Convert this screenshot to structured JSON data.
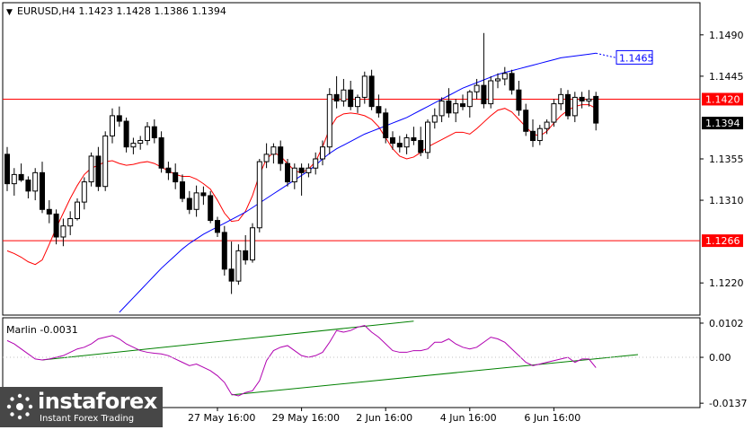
{
  "chart_data": {
    "type": "candlestick",
    "symbol_header": "EURUSD,H4  1.1423 1.1428 1.1386 1.1394",
    "ohlc_last": {
      "open": 1.1423,
      "high": 1.1428,
      "low": 1.1386,
      "close": 1.1394
    },
    "price_axis": {
      "ylim": [
        1.1185,
        1.1525
      ],
      "ticks": [
        "1.1490",
        "1.1445",
        "1.1355",
        "1.1310",
        "1.1220"
      ]
    },
    "horizontal_levels": [
      {
        "price": 1.142,
        "label": "1.1420",
        "color": "#ff0000"
      },
      {
        "price": 1.1266,
        "label": "1.1266",
        "color": "#ff0000"
      }
    ],
    "current_price": {
      "price": 1.1394,
      "label": "1.1394"
    },
    "target_label": {
      "price": 1.1465,
      "label": "1.1465",
      "color": "#0000ff"
    },
    "time_axis": {
      "ticks": [
        "27 May 16:00",
        "29 May 16:00",
        "2 Jun 16:00",
        "4 Jun 16:00",
        "6 Jun 16:00"
      ],
      "tick_bars": [
        30,
        42,
        54,
        66,
        78
      ]
    },
    "candles": [
      [
        1.136,
        1.1368,
        1.132,
        1.1328
      ],
      [
        1.1328,
        1.1345,
        1.1315,
        1.1338
      ],
      [
        1.1338,
        1.135,
        1.133,
        1.1332
      ],
      [
        1.1332,
        1.1336,
        1.1312,
        1.132
      ],
      [
        1.132,
        1.1345,
        1.131,
        1.134
      ],
      [
        1.134,
        1.1352,
        1.1296,
        1.13
      ],
      [
        1.13,
        1.131,
        1.1285,
        1.1295
      ],
      [
        1.1295,
        1.13,
        1.1262,
        1.127
      ],
      [
        1.127,
        1.129,
        1.126,
        1.1282
      ],
      [
        1.1282,
        1.1298,
        1.1272,
        1.129
      ],
      [
        1.129,
        1.1312,
        1.1288,
        1.1308
      ],
      [
        1.1308,
        1.1335,
        1.13,
        1.133
      ],
      [
        1.133,
        1.1362,
        1.1325,
        1.1358
      ],
      [
        1.1358,
        1.1368,
        1.132,
        1.1325
      ],
      [
        1.1325,
        1.1385,
        1.132,
        1.138
      ],
      [
        1.138,
        1.141,
        1.1372,
        1.1402
      ],
      [
        1.1402,
        1.1412,
        1.139,
        1.1396
      ],
      [
        1.1396,
        1.14,
        1.1362,
        1.1368
      ],
      [
        1.1368,
        1.1378,
        1.136,
        1.1372
      ],
      [
        1.1372,
        1.138,
        1.1365,
        1.1375
      ],
      [
        1.1375,
        1.1395,
        1.137,
        1.139
      ],
      [
        1.139,
        1.1398,
        1.1372,
        1.1378
      ],
      [
        1.1378,
        1.1385,
        1.134,
        1.1345
      ],
      [
        1.1345,
        1.1352,
        1.1332,
        1.134
      ],
      [
        1.134,
        1.135,
        1.1322,
        1.133
      ],
      [
        1.133,
        1.1338,
        1.1308,
        1.1312
      ],
      [
        1.1312,
        1.132,
        1.1295,
        1.13
      ],
      [
        1.13,
        1.1326,
        1.1292,
        1.1318
      ],
      [
        1.1318,
        1.1325,
        1.1305,
        1.1315
      ],
      [
        1.1315,
        1.132,
        1.1285,
        1.1288
      ],
      [
        1.1288,
        1.1292,
        1.127,
        1.1275
      ],
      [
        1.1275,
        1.1282,
        1.1228,
        1.1235
      ],
      [
        1.1235,
        1.1265,
        1.1208,
        1.1222
      ],
      [
        1.1222,
        1.1262,
        1.1218,
        1.1255
      ],
      [
        1.1255,
        1.1272,
        1.124,
        1.1245
      ],
      [
        1.1245,
        1.1285,
        1.1242,
        1.128
      ],
      [
        1.128,
        1.1355,
        1.1275,
        1.1352
      ],
      [
        1.1352,
        1.1372,
        1.1345,
        1.136
      ],
      [
        1.136,
        1.1372,
        1.135,
        1.1368
      ],
      [
        1.1368,
        1.1375,
        1.1342,
        1.135
      ],
      [
        1.135,
        1.1355,
        1.1325,
        1.133
      ],
      [
        1.133,
        1.135,
        1.1322,
        1.1345
      ],
      [
        1.1345,
        1.135,
        1.1315,
        1.134
      ],
      [
        1.134,
        1.135,
        1.1335,
        1.1345
      ],
      [
        1.1345,
        1.1362,
        1.1338,
        1.1355
      ],
      [
        1.1355,
        1.1375,
        1.1348,
        1.1368
      ],
      [
        1.1368,
        1.1432,
        1.136,
        1.1425
      ],
      [
        1.1425,
        1.1445,
        1.141,
        1.1418
      ],
      [
        1.1418,
        1.1442,
        1.1412,
        1.143
      ],
      [
        1.143,
        1.144,
        1.1408,
        1.1412
      ],
      [
        1.1412,
        1.1425,
        1.1405,
        1.1422
      ],
      [
        1.1422,
        1.145,
        1.1415,
        1.1445
      ],
      [
        1.1445,
        1.1452,
        1.1408,
        1.1412
      ],
      [
        1.1412,
        1.1425,
        1.14,
        1.1405
      ],
      [
        1.1405,
        1.141,
        1.1372,
        1.1378
      ],
      [
        1.1378,
        1.1385,
        1.1365,
        1.1372
      ],
      [
        1.1372,
        1.138,
        1.1362,
        1.1368
      ],
      [
        1.1368,
        1.1382,
        1.136,
        1.1378
      ],
      [
        1.1378,
        1.139,
        1.137,
        1.1375
      ],
      [
        1.1375,
        1.139,
        1.1358,
        1.1362
      ],
      [
        1.1362,
        1.1398,
        1.1355,
        1.1395
      ],
      [
        1.1395,
        1.141,
        1.1388,
        1.1402
      ],
      [
        1.1402,
        1.1422,
        1.1395,
        1.1418
      ],
      [
        1.1418,
        1.1432,
        1.14,
        1.1405
      ],
      [
        1.1405,
        1.142,
        1.1395,
        1.1415
      ],
      [
        1.1415,
        1.1425,
        1.1408,
        1.1412
      ],
      [
        1.1412,
        1.143,
        1.14,
        1.1428
      ],
      [
        1.1428,
        1.1442,
        1.142,
        1.1435
      ],
      [
        1.1435,
        1.1492,
        1.141,
        1.1415
      ],
      [
        1.1415,
        1.1445,
        1.141,
        1.144
      ],
      [
        1.144,
        1.1448,
        1.1432,
        1.1442
      ],
      [
        1.1442,
        1.1455,
        1.1435,
        1.1448
      ],
      [
        1.1448,
        1.1452,
        1.1425,
        1.143
      ],
      [
        1.143,
        1.144,
        1.1402,
        1.1408
      ],
      [
        1.1408,
        1.1415,
        1.138,
        1.1385
      ],
      [
        1.1385,
        1.1398,
        1.1368,
        1.1375
      ],
      [
        1.1375,
        1.1392,
        1.137,
        1.1388
      ],
      [
        1.1388,
        1.1398,
        1.1382,
        1.1395
      ],
      [
        1.1395,
        1.142,
        1.139,
        1.1415
      ],
      [
        1.1415,
        1.1432,
        1.1408,
        1.1425
      ],
      [
        1.1425,
        1.143,
        1.1398,
        1.1402
      ],
      [
        1.1402,
        1.1428,
        1.1395,
        1.1422
      ],
      [
        1.1422,
        1.1428,
        1.141,
        1.1418
      ],
      [
        1.1418,
        1.143,
        1.1412,
        1.142
      ],
      [
        1.1423,
        1.1428,
        1.1386,
        1.1394
      ]
    ],
    "red_ma": [
      1.1255,
      1.1252,
      1.1248,
      1.1243,
      1.124,
      1.1245,
      1.1262,
      1.128,
      1.1296,
      1.1312,
      1.1326,
      1.1338,
      1.1345,
      1.1348,
      1.1352,
      1.1353,
      1.135,
      1.1348,
      1.1349,
      1.1351,
      1.1352,
      1.135,
      1.1346,
      1.1342,
      1.1338,
      1.1336,
      1.1336,
      1.1333,
      1.1328,
      1.1322,
      1.131,
      1.1296,
      1.1287,
      1.1288,
      1.1298,
      1.1315,
      1.1338,
      1.1355,
      1.1362,
      1.1358,
      1.135,
      1.1342,
      1.134,
      1.1344,
      1.1352,
      1.1368,
      1.1388,
      1.14,
      1.1404,
      1.1405,
      1.1404,
      1.1402,
      1.1398,
      1.139,
      1.1378,
      1.1366,
      1.1358,
      1.1355,
      1.1357,
      1.1362,
      1.1368,
      1.1372,
      1.1376,
      1.138,
      1.1384,
      1.1384,
      1.1382,
      1.1388,
      1.1395,
      1.1402,
      1.1408,
      1.141,
      1.1406,
      1.1398,
      1.139,
      1.1382,
      1.138,
      1.1385,
      1.1394,
      1.1402,
      1.1408,
      1.1412,
      1.1414,
      1.1414,
      1.141
    ],
    "blue_ma_start_bar": 16,
    "blue_ma": [
      1.1188,
      1.1196,
      1.1204,
      1.1212,
      1.122,
      1.1228,
      1.1236,
      1.1243,
      1.125,
      1.1257,
      1.1263,
      1.1268,
      1.1273,
      1.1277,
      1.1281,
      1.1285,
      1.1289,
      1.1293,
      1.1297,
      1.1302,
      1.1307,
      1.1312,
      1.1317,
      1.1322,
      1.1327,
      1.1332,
      1.1337,
      1.1342,
      1.1348,
      1.1355,
      1.1361,
      1.1366,
      1.137,
      1.1374,
      1.1378,
      1.1382,
      1.1385,
      1.1388,
      1.1391,
      1.1394,
      1.1397,
      1.14,
      1.1404,
      1.1408,
      1.1412,
      1.1416,
      1.142,
      1.1424,
      1.1428,
      1.1432,
      1.1435,
      1.1438,
      1.1441,
      1.1444,
      1.1447,
      1.1449,
      1.1451,
      1.1453,
      1.1455,
      1.1457,
      1.1459,
      1.1461,
      1.1463,
      1.1465,
      1.1466,
      1.1467,
      1.1468,
      1.1469,
      1.147
    ],
    "indicator": {
      "name_label": "Marlin -0.0031",
      "ylim": [
        -0.015,
        0.0118
      ],
      "ticks": [
        "0.0102",
        "0.00",
        "-0.0137"
      ],
      "values": [
        0.005,
        0.004,
        0.0025,
        0.001,
        -0.0005,
        -0.0008,
        -0.0005,
        0.0,
        0.0005,
        0.0015,
        0.0025,
        0.003,
        0.004,
        0.0055,
        0.006,
        0.0065,
        0.0055,
        0.004,
        0.003,
        0.002,
        0.0015,
        0.0012,
        0.001,
        0.0005,
        -0.0005,
        -0.0015,
        -0.0025,
        -0.002,
        -0.003,
        -0.004,
        -0.0055,
        -0.0075,
        -0.011,
        -0.0115,
        -0.0105,
        -0.01,
        -0.007,
        -0.001,
        0.002,
        0.003,
        0.0035,
        0.002,
        0.0005,
        0.0,
        0.0005,
        0.0015,
        0.0045,
        0.008,
        0.0075,
        0.008,
        0.009,
        0.0095,
        0.0075,
        0.006,
        0.004,
        0.002,
        0.0015,
        0.0015,
        0.002,
        0.002,
        0.0025,
        0.0045,
        0.0045,
        0.0055,
        0.004,
        0.003,
        0.0025,
        0.003,
        0.0045,
        0.006,
        0.0055,
        0.0045,
        0.0025,
        0.0005,
        -0.0015,
        -0.0025,
        -0.002,
        -0.0015,
        -0.001,
        -0.0005,
        0.0,
        -0.0015,
        -0.0005,
        -0.0005,
        -0.0031
      ]
    },
    "trendlines": {
      "price_green_upper": [
        [
          5,
          0.0
        ],
        [
          58,
          0.0
        ]
      ],
      "note": ""
    }
  },
  "branding": {
    "brand": "instaforex",
    "tagline": "Instant Forex Trading"
  },
  "colors": {
    "up_candle": "#ffffff",
    "down_candle": "#000000",
    "red_ma": "#ff0000",
    "blue_ma": "#0000ff",
    "indicator": "#b000b0",
    "trendline": "#008000",
    "level": "#ff0000"
  }
}
